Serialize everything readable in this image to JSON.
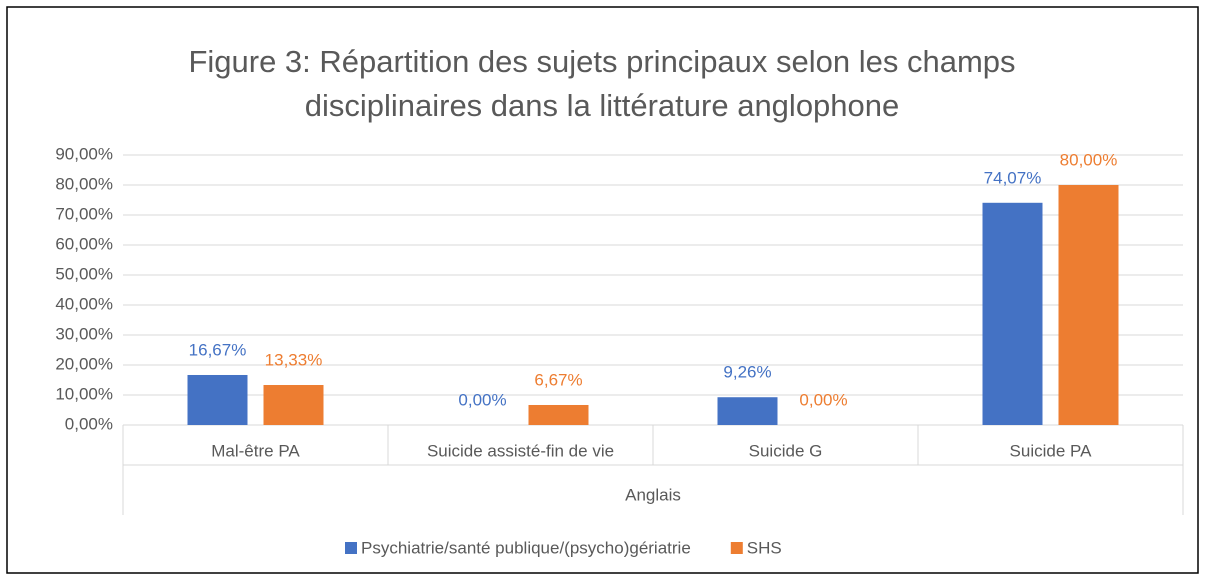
{
  "chart_data": {
    "type": "bar",
    "title": "Figure 3: Répartition des sujets principaux  selon les champs disciplinaires dans la littérature anglophone",
    "categories": [
      "Mal-être PA",
      "Suicide assisté-fin de vie",
      "Suicide G",
      "Suicide PA"
    ],
    "group_label": "Anglais",
    "series": [
      {
        "name": "Psychiatrie/santé publique/(psycho)gériatrie",
        "color": "#4472c4",
        "values": [
          16.67,
          0,
          9.26,
          74.07
        ],
        "value_labels": [
          "16,67%",
          "0,00%",
          "9,26%",
          "74,07%"
        ]
      },
      {
        "name": "SHS",
        "color": "#ed7d31",
        "values": [
          13.33,
          6.67,
          0,
          80
        ],
        "value_labels": [
          "13,33%",
          "6,67%",
          "0,00%",
          "80,00%"
        ]
      }
    ],
    "ylim": [
      0,
      90
    ],
    "yticks": [
      {
        "value": 0,
        "label": "0,00%"
      },
      {
        "value": 10,
        "label": "10,00%"
      },
      {
        "value": 20,
        "label": "20,00%"
      },
      {
        "value": 30,
        "label": "30,00%"
      },
      {
        "value": 40,
        "label": "40,00%"
      },
      {
        "value": 50,
        "label": "50,00%"
      },
      {
        "value": 60,
        "label": "60,00%"
      },
      {
        "value": 70,
        "label": "70,00%"
      },
      {
        "value": 80,
        "label": "80,00%"
      },
      {
        "value": 90,
        "label": "90,00%"
      }
    ],
    "grid": true,
    "legend": "bottom"
  }
}
